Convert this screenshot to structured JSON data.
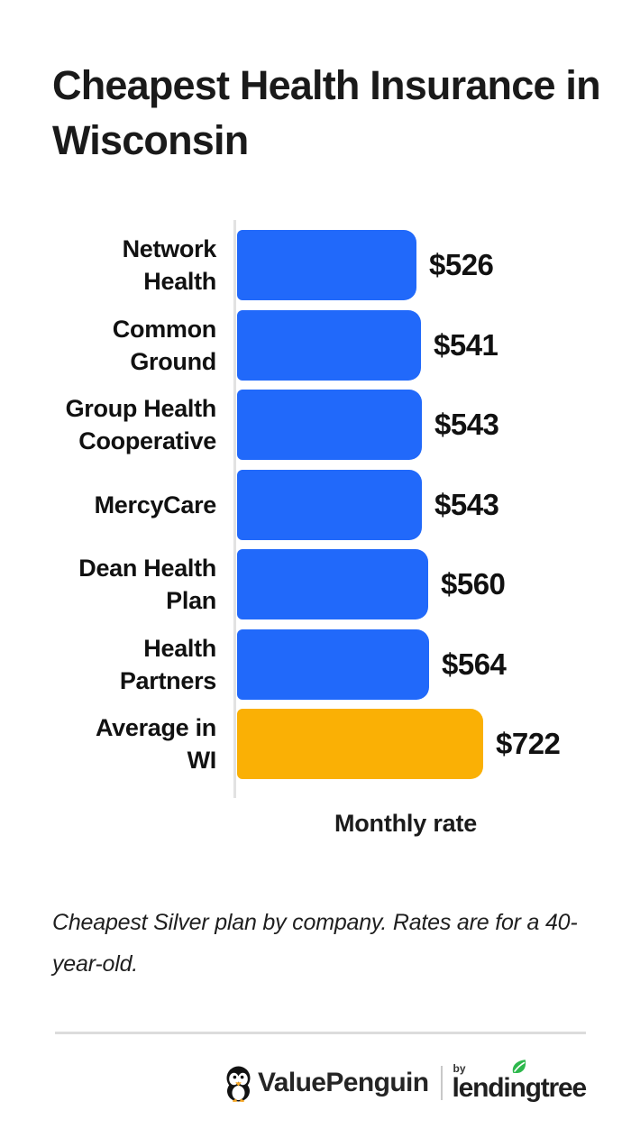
{
  "page": {
    "title": "Cheapest Health Insurance in Wisconsin"
  },
  "chart_data": {
    "type": "bar",
    "orientation": "horizontal",
    "title": "Cheapest Health Insurance in Wisconsin",
    "categories": [
      "Network Health",
      "Common Ground",
      "Group Health Cooperative",
      "MercyCare",
      "Dean Health Plan",
      "Health Partners",
      "Average in WI"
    ],
    "label_lines": [
      [
        "Network",
        "Health"
      ],
      [
        "Common",
        "Ground"
      ],
      [
        "Group Health",
        "Cooperative"
      ],
      [
        "MercyCare"
      ],
      [
        "Dean Health",
        "Plan"
      ],
      [
        "Health",
        "Partners"
      ],
      [
        "Average in",
        "WI"
      ]
    ],
    "values": [
      526,
      541,
      543,
      543,
      560,
      564,
      722
    ],
    "value_labels": [
      "$526",
      "$541",
      "$543",
      "$543",
      "$560",
      "$564",
      "$722"
    ],
    "bar_colors": [
      "#2169fa",
      "#2169fa",
      "#2169fa",
      "#2169fa",
      "#2169fa",
      "#2169fa",
      "#fab005"
    ],
    "xlabel": "Monthly rate",
    "ylabel": "",
    "xlim": [
      0,
      740
    ],
    "grid": false,
    "legend": false,
    "accent_blue": "#2169fa",
    "accent_gold": "#fab005",
    "axis_color": "#e2e2e2"
  },
  "footnote": "Cheapest Silver plan by company. Rates are for a 40-year-old.",
  "footer": {
    "brand": "ValuePenguin",
    "by_label": "by",
    "partner": "lendingtree",
    "penguin_icon": "penguin-icon",
    "leaf_icon": "leaf-icon",
    "leaf_color": "#2db84c"
  }
}
